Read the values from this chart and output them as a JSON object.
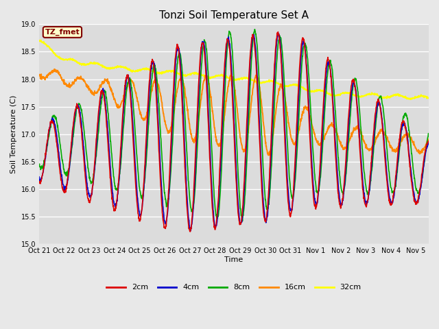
{
  "title": "Tonzi Soil Temperature Set A",
  "xlabel": "Time",
  "ylabel": "Soil Temperature (C)",
  "ylim": [
    15.0,
    19.0
  ],
  "yticks": [
    15.0,
    15.5,
    16.0,
    16.5,
    17.0,
    17.5,
    18.0,
    18.5,
    19.0
  ],
  "xtick_labels": [
    "Oct 21",
    "Oct 22",
    "Oct 23",
    "Oct 24",
    "Oct 25",
    "Oct 26",
    "Oct 27",
    "Oct 28",
    "Oct 29",
    "Oct 30",
    "Oct 31",
    "Nov 1",
    "Nov 2",
    "Nov 3",
    "Nov 4",
    "Nov 5"
  ],
  "annotation_text": "TZ_fmet",
  "annotation_bg": "#ffffcc",
  "annotation_border": "#800000",
  "colors": {
    "2cm": "#dd0000",
    "4cm": "#0000cc",
    "8cm": "#00aa00",
    "16cm": "#ff8800",
    "32cm": "#ffff00"
  },
  "bg_color": "#dcdcdc",
  "grid_color": "#ffffff",
  "n_days": 15.5,
  "points_per_day": 96
}
